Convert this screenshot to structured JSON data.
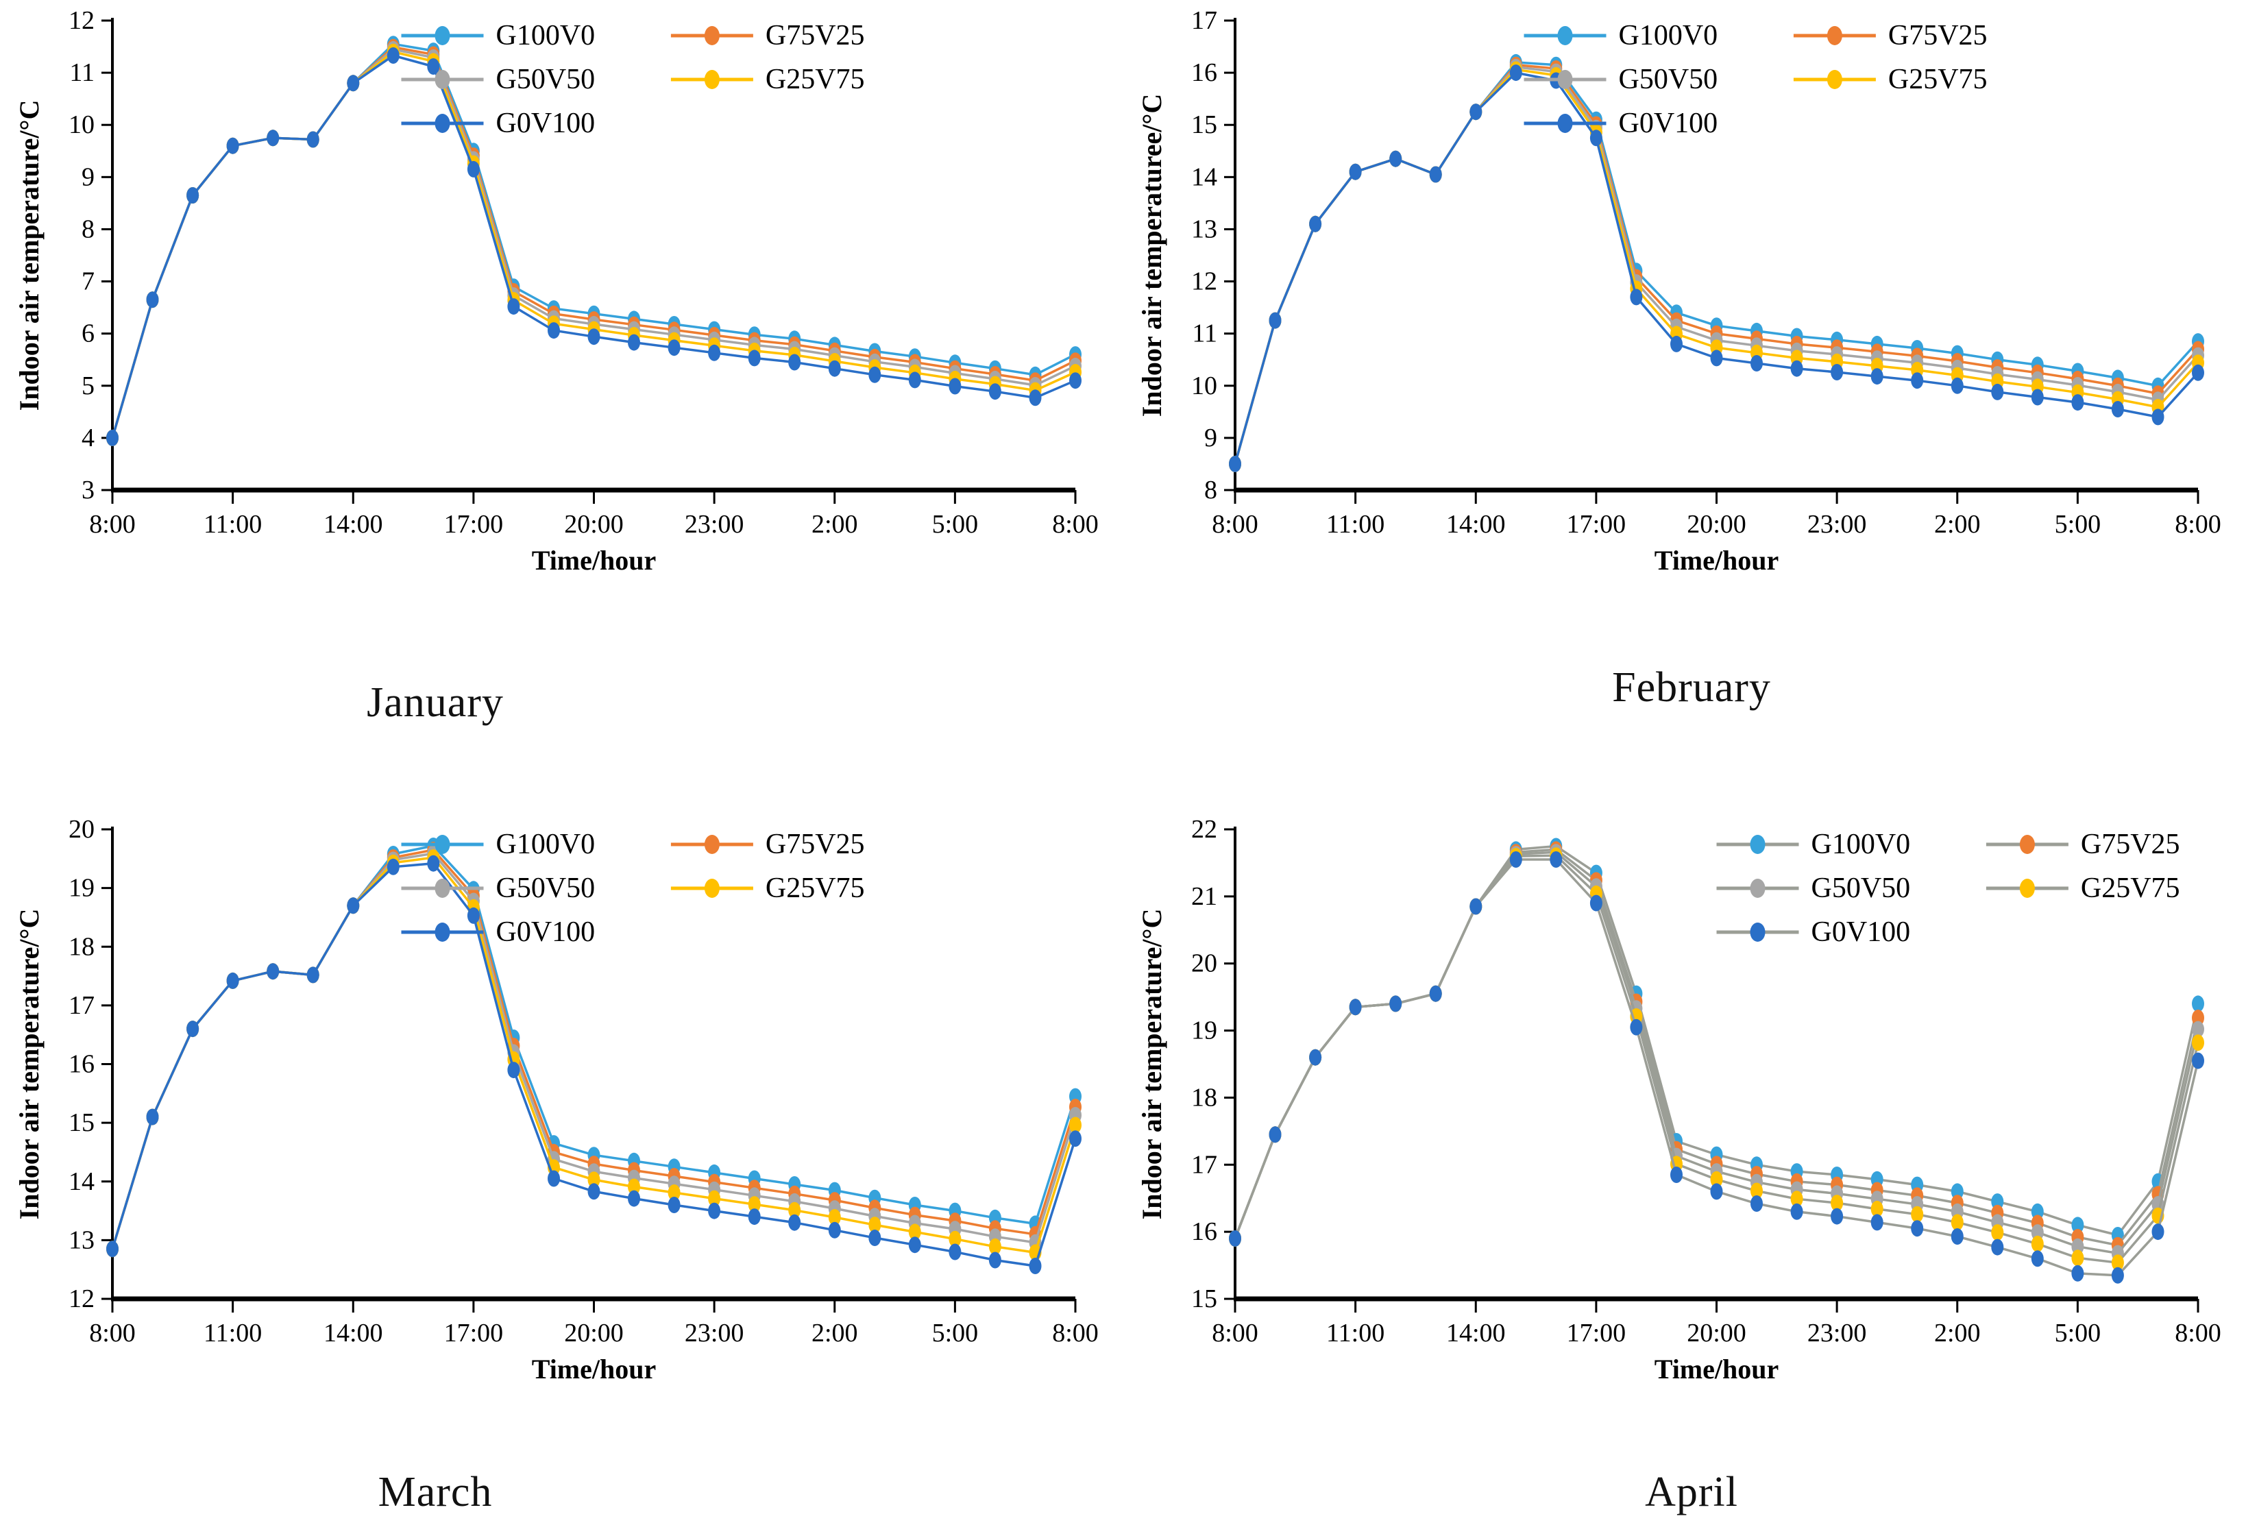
{
  "page": {
    "background": "#FFFFFF",
    "axis_color": "#000000"
  },
  "legend": {
    "entries": [
      "G100V0",
      "G75V25",
      "G50V50",
      "G25V75",
      "G0V100"
    ],
    "colors": {
      "G100V0": "#36A2DB",
      "G75V25": "#ED7D31",
      "G50V50": "#A6A6A6",
      "G25V75": "#FFC000",
      "G0V100": "#2A6FC7"
    }
  },
  "chart_data": [
    {
      "id": "january",
      "type": "line",
      "title": "January",
      "xlabel": "Time/hour",
      "ylabel": "Indoor air temperature/°C",
      "ylim": [
        3,
        12
      ],
      "ytick_step": 1,
      "x_tick_every": 3,
      "x_tick_labels": [
        "8:00",
        "11:00",
        "14:00",
        "17:00",
        "20:00",
        "23:00",
        "2:00",
        "5:00",
        "8:00"
      ],
      "x_categories": [
        "8:00",
        "9:00",
        "10:00",
        "11:00",
        "12:00",
        "13:00",
        "14:00",
        "15:00",
        "16:00",
        "17:00",
        "18:00",
        "19:00",
        "20:00",
        "21:00",
        "22:00",
        "23:00",
        "0:00",
        "1:00",
        "2:00",
        "3:00",
        "4:00",
        "5:00",
        "6:00",
        "7:00",
        "8:00"
      ],
      "legend_position": "top-right",
      "legend_cols": [
        0.3,
        0.58
      ],
      "line_color_override": null,
      "series": [
        {
          "name": "G100V0",
          "color": "#36A2DB",
          "values": [
            4.0,
            6.65,
            8.65,
            9.6,
            9.75,
            9.72,
            10.8,
            11.55,
            11.42,
            9.5,
            6.9,
            6.48,
            6.38,
            6.28,
            6.18,
            6.08,
            5.98,
            5.9,
            5.78,
            5.66,
            5.56,
            5.44,
            5.33,
            5.21,
            5.6
          ]
        },
        {
          "name": "G75V25",
          "color": "#ED7D31",
          "values": [
            4.0,
            6.65,
            8.65,
            9.6,
            9.75,
            9.72,
            10.8,
            11.49,
            11.35,
            9.41,
            6.81,
            6.38,
            6.27,
            6.17,
            6.07,
            5.97,
            5.87,
            5.79,
            5.67,
            5.55,
            5.45,
            5.33,
            5.22,
            5.1,
            5.48
          ]
        },
        {
          "name": "G50V50",
          "color": "#A6A6A6",
          "values": [
            4.0,
            6.65,
            8.65,
            9.6,
            9.75,
            9.72,
            10.8,
            11.45,
            11.29,
            9.34,
            6.73,
            6.29,
            6.18,
            6.08,
            5.98,
            5.88,
            5.78,
            5.7,
            5.58,
            5.46,
            5.36,
            5.24,
            5.13,
            5.01,
            5.38
          ]
        },
        {
          "name": "G25V75",
          "color": "#FFC000",
          "values": [
            4.0,
            6.65,
            8.65,
            9.6,
            9.75,
            9.72,
            10.8,
            11.4,
            11.22,
            9.26,
            6.64,
            6.19,
            6.08,
            5.97,
            5.87,
            5.77,
            5.67,
            5.59,
            5.47,
            5.35,
            5.25,
            5.13,
            5.03,
            4.91,
            5.26
          ]
        },
        {
          "name": "G0V100",
          "color": "#2A6FC7",
          "values": [
            4.0,
            6.65,
            8.65,
            9.6,
            9.75,
            9.72,
            10.8,
            11.33,
            11.12,
            9.15,
            6.52,
            6.06,
            5.94,
            5.83,
            5.73,
            5.63,
            5.53,
            5.45,
            5.33,
            5.21,
            5.11,
            4.99,
            4.89,
            4.77,
            5.1
          ]
        }
      ]
    },
    {
      "id": "february",
      "type": "line",
      "title": "February",
      "xlabel": "Time/hour",
      "ylabel": "Indoor air temperaturee/°C",
      "ylim": [
        8,
        17
      ],
      "ytick_step": 1,
      "x_tick_every": 3,
      "x_tick_labels": [
        "8:00",
        "11:00",
        "14:00",
        "17:00",
        "20:00",
        "23:00",
        "2:00",
        "5:00",
        "8:00"
      ],
      "x_categories": [
        "8:00",
        "9:00",
        "10:00",
        "11:00",
        "12:00",
        "13:00",
        "14:00",
        "15:00",
        "16:00",
        "17:00",
        "18:00",
        "19:00",
        "20:00",
        "21:00",
        "22:00",
        "23:00",
        "0:00",
        "1:00",
        "2:00",
        "3:00",
        "4:00",
        "5:00",
        "6:00",
        "7:00",
        "8:00"
      ],
      "legend_position": "top-right",
      "legend_cols": [
        0.3,
        0.58
      ],
      "line_color_override": null,
      "series": [
        {
          "name": "G100V0",
          "color": "#36A2DB",
          "values": [
            8.5,
            11.25,
            13.1,
            14.1,
            14.35,
            14.05,
            15.25,
            16.2,
            16.15,
            15.1,
            12.2,
            11.4,
            11.15,
            11.05,
            10.95,
            10.88,
            10.8,
            10.72,
            10.62,
            10.5,
            10.4,
            10.28,
            10.15,
            10.0,
            10.85
          ]
        },
        {
          "name": "G75V25",
          "color": "#ED7D31",
          "values": [
            8.5,
            11.25,
            13.1,
            14.1,
            14.35,
            14.05,
            15.25,
            16.15,
            16.08,
            15.01,
            12.08,
            11.25,
            11.0,
            10.9,
            10.8,
            10.73,
            10.65,
            10.57,
            10.47,
            10.35,
            10.25,
            10.13,
            10.0,
            9.85,
            10.7
          ]
        },
        {
          "name": "G50V50",
          "color": "#A6A6A6",
          "values": [
            8.5,
            11.25,
            13.1,
            14.1,
            14.35,
            14.05,
            15.25,
            16.11,
            16.02,
            14.94,
            11.98,
            11.13,
            10.87,
            10.77,
            10.67,
            10.6,
            10.52,
            10.44,
            10.34,
            10.22,
            10.12,
            10.01,
            9.88,
            9.73,
            10.58
          ]
        },
        {
          "name": "G25V75",
          "color": "#FFC000",
          "values": [
            8.5,
            11.25,
            13.1,
            14.1,
            14.35,
            14.05,
            15.25,
            16.06,
            15.95,
            14.86,
            11.86,
            10.99,
            10.73,
            10.63,
            10.53,
            10.46,
            10.38,
            10.3,
            10.2,
            10.08,
            9.98,
            9.87,
            9.74,
            9.59,
            10.44
          ]
        },
        {
          "name": "G0V100",
          "color": "#2A6FC7",
          "values": [
            8.5,
            11.25,
            13.1,
            14.1,
            14.35,
            14.05,
            15.25,
            16.0,
            15.85,
            14.75,
            11.7,
            10.8,
            10.53,
            10.43,
            10.33,
            10.26,
            10.18,
            10.1,
            10.0,
            9.88,
            9.78,
            9.68,
            9.55,
            9.4,
            10.25
          ]
        }
      ]
    },
    {
      "id": "march",
      "type": "line",
      "title": "March",
      "xlabel": "Time/hour",
      "ylabel": "Indoor air temperature/°C",
      "ylim": [
        12,
        20
      ],
      "ytick_step": 1,
      "x_tick_every": 3,
      "x_tick_labels": [
        "8:00",
        "11:00",
        "14:00",
        "17:00",
        "20:00",
        "23:00",
        "2:00",
        "5:00",
        "8:00"
      ],
      "x_categories": [
        "8:00",
        "9:00",
        "10:00",
        "11:00",
        "12:00",
        "13:00",
        "14:00",
        "15:00",
        "16:00",
        "17:00",
        "18:00",
        "19:00",
        "20:00",
        "21:00",
        "22:00",
        "23:00",
        "0:00",
        "1:00",
        "2:00",
        "3:00",
        "4:00",
        "5:00",
        "6:00",
        "7:00",
        "8:00"
      ],
      "legend_position": "top-right",
      "legend_cols": [
        0.3,
        0.58
      ],
      "line_color_override": null,
      "series": [
        {
          "name": "G100V0",
          "color": "#36A2DB",
          "values": [
            12.85,
            15.1,
            16.6,
            17.42,
            17.58,
            17.52,
            18.7,
            19.58,
            19.72,
            18.98,
            16.45,
            14.65,
            14.45,
            14.35,
            14.25,
            14.15,
            14.05,
            13.95,
            13.85,
            13.72,
            13.6,
            13.5,
            13.38,
            13.28,
            15.45
          ]
        },
        {
          "name": "G75V25",
          "color": "#ED7D31",
          "values": [
            12.85,
            15.1,
            16.6,
            17.42,
            17.58,
            17.52,
            18.7,
            19.52,
            19.65,
            18.87,
            16.31,
            14.5,
            14.3,
            14.19,
            14.09,
            13.99,
            13.89,
            13.79,
            13.68,
            13.55,
            13.43,
            13.33,
            13.2,
            13.1,
            15.27
          ]
        },
        {
          "name": "G50V50",
          "color": "#A6A6A6",
          "values": [
            12.85,
            15.1,
            16.6,
            17.42,
            17.58,
            17.52,
            18.7,
            19.48,
            19.59,
            18.78,
            16.2,
            14.38,
            14.17,
            14.06,
            13.96,
            13.86,
            13.76,
            13.66,
            13.54,
            13.41,
            13.29,
            13.19,
            13.06,
            12.96,
            15.13
          ]
        },
        {
          "name": "G25V75",
          "color": "#FFC000",
          "values": [
            12.85,
            15.1,
            16.6,
            17.42,
            17.58,
            17.52,
            18.7,
            19.43,
            19.52,
            18.67,
            16.08,
            14.24,
            14.03,
            13.91,
            13.81,
            13.71,
            13.61,
            13.51,
            13.39,
            13.26,
            13.14,
            13.02,
            12.89,
            12.79,
            14.96
          ]
        },
        {
          "name": "G0V100",
          "color": "#2A6FC7",
          "values": [
            12.85,
            15.1,
            16.6,
            17.42,
            17.58,
            17.52,
            18.7,
            19.36,
            19.42,
            18.53,
            15.9,
            14.05,
            13.83,
            13.71,
            13.6,
            13.5,
            13.4,
            13.3,
            13.17,
            13.04,
            12.92,
            12.8,
            12.66,
            12.56,
            14.73
          ]
        }
      ]
    },
    {
      "id": "april",
      "type": "line",
      "title": "April",
      "xlabel": "Time/hour",
      "ylabel": "Indoor air temperature/°C",
      "ylim": [
        15,
        22
      ],
      "ytick_step": 1,
      "x_tick_every": 3,
      "x_tick_labels": [
        "8:00",
        "11:00",
        "14:00",
        "17:00",
        "20:00",
        "23:00",
        "2:00",
        "5:00",
        "8:00"
      ],
      "x_categories": [
        "8:00",
        "9:00",
        "10:00",
        "11:00",
        "12:00",
        "13:00",
        "14:00",
        "15:00",
        "16:00",
        "17:00",
        "18:00",
        "19:00",
        "20:00",
        "21:00",
        "22:00",
        "23:00",
        "0:00",
        "1:00",
        "2:00",
        "3:00",
        "4:00",
        "5:00",
        "6:00",
        "7:00",
        "8:00"
      ],
      "legend_position": "top-right",
      "legend_cols": [
        0.5,
        0.78
      ],
      "line_color_override": "#9B9E96",
      "series": [
        {
          "name": "G100V0",
          "color": "#36A2DB",
          "values": [
            15.9,
            17.45,
            18.6,
            19.35,
            19.4,
            19.55,
            20.85,
            21.7,
            21.75,
            21.35,
            19.55,
            17.35,
            17.15,
            17.0,
            16.9,
            16.85,
            16.78,
            16.7,
            16.6,
            16.45,
            16.3,
            16.1,
            15.95,
            16.75,
            19.4
          ]
        },
        {
          "name": "G75V25",
          "color": "#ED7D31",
          "values": [
            15.9,
            17.45,
            18.6,
            19.35,
            19.4,
            19.55,
            20.85,
            21.66,
            21.7,
            21.24,
            19.43,
            17.23,
            17.01,
            16.86,
            16.75,
            16.7,
            16.62,
            16.54,
            16.43,
            16.28,
            16.13,
            15.92,
            15.8,
            16.56,
            19.19
          ]
        },
        {
          "name": "G50V50",
          "color": "#A6A6A6",
          "values": [
            15.9,
            17.45,
            18.6,
            19.35,
            19.4,
            19.55,
            20.85,
            21.63,
            21.66,
            21.15,
            19.33,
            17.13,
            16.9,
            16.74,
            16.63,
            16.57,
            16.49,
            16.41,
            16.3,
            16.14,
            15.99,
            15.78,
            15.68,
            16.41,
            19.02
          ]
        },
        {
          "name": "G25V75",
          "color": "#FFC000",
          "values": [
            15.9,
            17.45,
            18.6,
            19.35,
            19.4,
            19.55,
            20.85,
            21.6,
            21.61,
            21.04,
            19.21,
            17.01,
            16.78,
            16.61,
            16.49,
            16.43,
            16.34,
            16.26,
            16.14,
            15.99,
            15.82,
            15.61,
            15.54,
            16.24,
            18.82
          ]
        },
        {
          "name": "G0V100",
          "color": "#2A6FC7",
          "values": [
            15.9,
            17.45,
            18.6,
            19.35,
            19.4,
            19.55,
            20.85,
            21.55,
            21.55,
            20.9,
            19.05,
            16.85,
            16.6,
            16.42,
            16.3,
            16.23,
            16.14,
            16.05,
            15.93,
            15.77,
            15.6,
            15.38,
            15.35,
            16.0,
            18.55
          ]
        }
      ]
    }
  ]
}
